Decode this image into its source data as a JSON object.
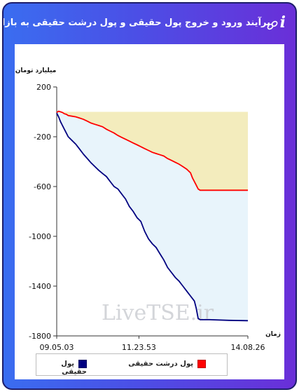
{
  "header": {
    "title": "برآیند ورود و خروج پول حقیقی و پول درشت حقیقی به بازار",
    "info_glyph": "i",
    "chain_icon": "chain-link-icon"
  },
  "chart_data": {
    "type": "line",
    "ylabel": "میلیارد تومان",
    "xlabel": "زمان",
    "ylim": [
      -1800,
      200
    ],
    "yticks": [
      200,
      -200,
      -600,
      -1000,
      -1400,
      -1800
    ],
    "yticklabels": [
      "200",
      "-200",
      "-600",
      "-1000",
      "-1400",
      "-1800"
    ],
    "x_ticklabels": [
      "09.05.03",
      "11.23.53",
      "14.08.26"
    ],
    "x_tick_positions": [
      0,
      0.43,
      1
    ],
    "baseline": 0,
    "watermark": "LiveTSE.ir",
    "series": [
      {
        "name": "پول حقیقی",
        "color": "#000080",
        "fill_color": "#e8f4fb",
        "x": [
          0,
          0.01,
          0.02,
          0.03,
          0.04,
          0.05,
          0.06,
          0.08,
          0.1,
          0.12,
          0.14,
          0.16,
          0.18,
          0.2,
          0.22,
          0.24,
          0.26,
          0.28,
          0.3,
          0.32,
          0.34,
          0.36,
          0.38,
          0.4,
          0.42,
          0.44,
          0.46,
          0.48,
          0.5,
          0.52,
          0.54,
          0.56,
          0.58,
          0.6,
          0.62,
          0.64,
          0.66,
          0.68,
          0.7,
          0.72,
          0.73,
          0.74,
          0.75,
          0.8,
          0.9,
          1.0
        ],
        "values": [
          -10,
          -40,
          -80,
          -110,
          -140,
          -170,
          -200,
          -230,
          -260,
          -300,
          -340,
          -375,
          -410,
          -440,
          -470,
          -495,
          -520,
          -560,
          -600,
          -620,
          -660,
          -700,
          -760,
          -800,
          -850,
          -880,
          -960,
          -1020,
          -1060,
          -1090,
          -1140,
          -1190,
          -1250,
          -1290,
          -1330,
          -1360,
          -1400,
          -1440,
          -1480,
          -1520,
          -1580,
          -1660,
          -1670,
          -1670,
          -1675,
          -1678
        ]
      },
      {
        "name": "پول درشت حقیقی",
        "color": "#ff0000",
        "fill_color": "#f3ecbd",
        "x": [
          0,
          0.01,
          0.02,
          0.03,
          0.04,
          0.05,
          0.06,
          0.08,
          0.1,
          0.12,
          0.14,
          0.16,
          0.18,
          0.2,
          0.22,
          0.24,
          0.26,
          0.28,
          0.3,
          0.32,
          0.34,
          0.36,
          0.38,
          0.4,
          0.42,
          0.44,
          0.46,
          0.48,
          0.5,
          0.52,
          0.54,
          0.56,
          0.58,
          0.6,
          0.62,
          0.64,
          0.66,
          0.68,
          0.7,
          0.71,
          0.72,
          0.73,
          0.74,
          0.75,
          0.8,
          0.9,
          1.0
        ],
        "values": [
          -5,
          5,
          0,
          -5,
          -15,
          -20,
          -30,
          -35,
          -40,
          -50,
          -60,
          -75,
          -90,
          -100,
          -110,
          -120,
          -140,
          -155,
          -170,
          -190,
          -205,
          -220,
          -235,
          -250,
          -265,
          -280,
          -295,
          -310,
          -325,
          -335,
          -345,
          -355,
          -375,
          -390,
          -405,
          -420,
          -440,
          -460,
          -490,
          -530,
          -560,
          -590,
          -620,
          -630,
          -630,
          -630,
          -630
        ]
      }
    ],
    "legend_position": "bottom",
    "grid": false
  }
}
